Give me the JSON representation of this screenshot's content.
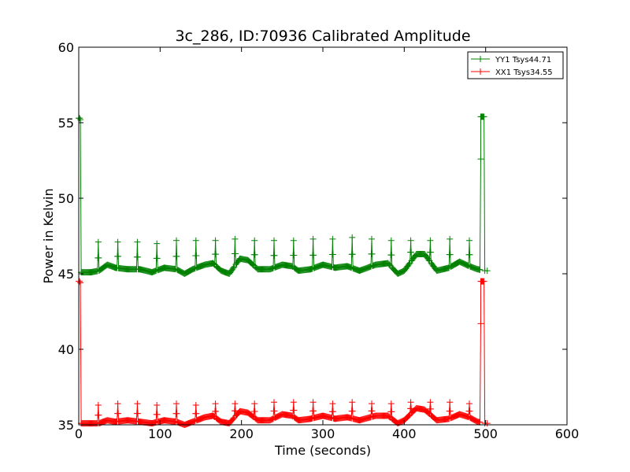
{
  "chart_data": {
    "type": "line",
    "title": "3c_286, ID:70936 Calibrated Amplitude",
    "xlabel": "Time (seconds)",
    "ylabel": "Power in Kelvin",
    "xlim": [
      0,
      600
    ],
    "ylim": [
      35,
      60
    ],
    "xticks": [
      "0",
      "100",
      "200",
      "300",
      "400",
      "500",
      "600"
    ],
    "yticks": [
      "35",
      "40",
      "45",
      "50",
      "55",
      "60"
    ],
    "grid": false,
    "legend_position": "top-right",
    "marker": "plus",
    "series": [
      {
        "name": "YY1 Tsys44.71",
        "color": "#008000",
        "start": {
          "x": 0,
          "y": 55.3
        },
        "end": {
          "x": 502,
          "y": 45.2
        },
        "plateau": {
          "x_start": 494,
          "x_end": 498,
          "y": 55.4
        },
        "spikes": [
          [
            24,
            47.1
          ],
          [
            48,
            47.1
          ],
          [
            72,
            47.1
          ],
          [
            96,
            47.0
          ],
          [
            120,
            47.2
          ],
          [
            144,
            47.2
          ],
          [
            168,
            47.2
          ],
          [
            192,
            47.3
          ],
          [
            216,
            47.2
          ],
          [
            240,
            47.2
          ],
          [
            264,
            47.2
          ],
          [
            288,
            47.3
          ],
          [
            312,
            47.3
          ],
          [
            336,
            47.4
          ],
          [
            360,
            47.3
          ],
          [
            384,
            47.2
          ],
          [
            408,
            47.2
          ],
          [
            432,
            47.2
          ],
          [
            456,
            47.3
          ],
          [
            480,
            47.2
          ]
        ],
        "baseline": [
          [
            3,
            45.1
          ],
          [
            15,
            45.1
          ],
          [
            25,
            45.2
          ],
          [
            35,
            45.6
          ],
          [
            45,
            45.4
          ],
          [
            60,
            45.3
          ],
          [
            75,
            45.3
          ],
          [
            90,
            45.1
          ],
          [
            105,
            45.4
          ],
          [
            120,
            45.3
          ],
          [
            130,
            45.0
          ],
          [
            140,
            45.3
          ],
          [
            155,
            45.6
          ],
          [
            165,
            45.7
          ],
          [
            175,
            45.2
          ],
          [
            185,
            45.0
          ],
          [
            198,
            46.0
          ],
          [
            208,
            45.9
          ],
          [
            220,
            45.3
          ],
          [
            235,
            45.3
          ],
          [
            250,
            45.6
          ],
          [
            262,
            45.5
          ],
          [
            270,
            45.2
          ],
          [
            285,
            45.3
          ],
          [
            300,
            45.6
          ],
          [
            315,
            45.4
          ],
          [
            330,
            45.5
          ],
          [
            345,
            45.2
          ],
          [
            365,
            45.6
          ],
          [
            380,
            45.7
          ],
          [
            392,
            45.0
          ],
          [
            400,
            45.2
          ],
          [
            415,
            46.3
          ],
          [
            425,
            46.3
          ],
          [
            440,
            45.2
          ],
          [
            455,
            45.4
          ],
          [
            468,
            45.8
          ],
          [
            480,
            45.5
          ],
          [
            490,
            45.3
          ],
          [
            500,
            45.2
          ]
        ]
      },
      {
        "name": "XX1 Tsys34.55",
        "color": "#ff0000",
        "start": {
          "x": 0,
          "y": 44.5
        },
        "end": {
          "x": 502,
          "y": 35.1
        },
        "plateau": {
          "x_start": 494,
          "x_end": 498,
          "y": 44.5
        },
        "spikes": [
          [
            24,
            36.3
          ],
          [
            48,
            36.4
          ],
          [
            72,
            36.4
          ],
          [
            96,
            36.3
          ],
          [
            120,
            36.4
          ],
          [
            144,
            36.3
          ],
          [
            168,
            36.4
          ],
          [
            192,
            36.4
          ],
          [
            216,
            36.4
          ],
          [
            240,
            36.5
          ],
          [
            264,
            36.5
          ],
          [
            288,
            36.5
          ],
          [
            312,
            36.4
          ],
          [
            336,
            36.5
          ],
          [
            360,
            36.4
          ],
          [
            384,
            36.4
          ],
          [
            408,
            36.5
          ],
          [
            432,
            36.5
          ],
          [
            456,
            36.5
          ],
          [
            480,
            36.4
          ]
        ],
        "baseline": [
          [
            3,
            35.1
          ],
          [
            15,
            35.1
          ],
          [
            25,
            35.1
          ],
          [
            35,
            35.3
          ],
          [
            45,
            35.2
          ],
          [
            60,
            35.3
          ],
          [
            75,
            35.2
          ],
          [
            90,
            35.1
          ],
          [
            105,
            35.3
          ],
          [
            120,
            35.2
          ],
          [
            130,
            35.0
          ],
          [
            140,
            35.2
          ],
          [
            155,
            35.5
          ],
          [
            165,
            35.6
          ],
          [
            175,
            35.2
          ],
          [
            185,
            35.1
          ],
          [
            198,
            35.9
          ],
          [
            208,
            35.8
          ],
          [
            220,
            35.3
          ],
          [
            235,
            35.3
          ],
          [
            250,
            35.7
          ],
          [
            262,
            35.6
          ],
          [
            270,
            35.3
          ],
          [
            285,
            35.4
          ],
          [
            300,
            35.6
          ],
          [
            315,
            35.4
          ],
          [
            330,
            35.5
          ],
          [
            345,
            35.3
          ],
          [
            365,
            35.6
          ],
          [
            380,
            35.6
          ],
          [
            392,
            35.1
          ],
          [
            400,
            35.3
          ],
          [
            415,
            36.1
          ],
          [
            425,
            36.0
          ],
          [
            440,
            35.3
          ],
          [
            455,
            35.4
          ],
          [
            468,
            35.7
          ],
          [
            480,
            35.5
          ],
          [
            490,
            35.2
          ],
          [
            500,
            35.1
          ]
        ]
      }
    ]
  }
}
